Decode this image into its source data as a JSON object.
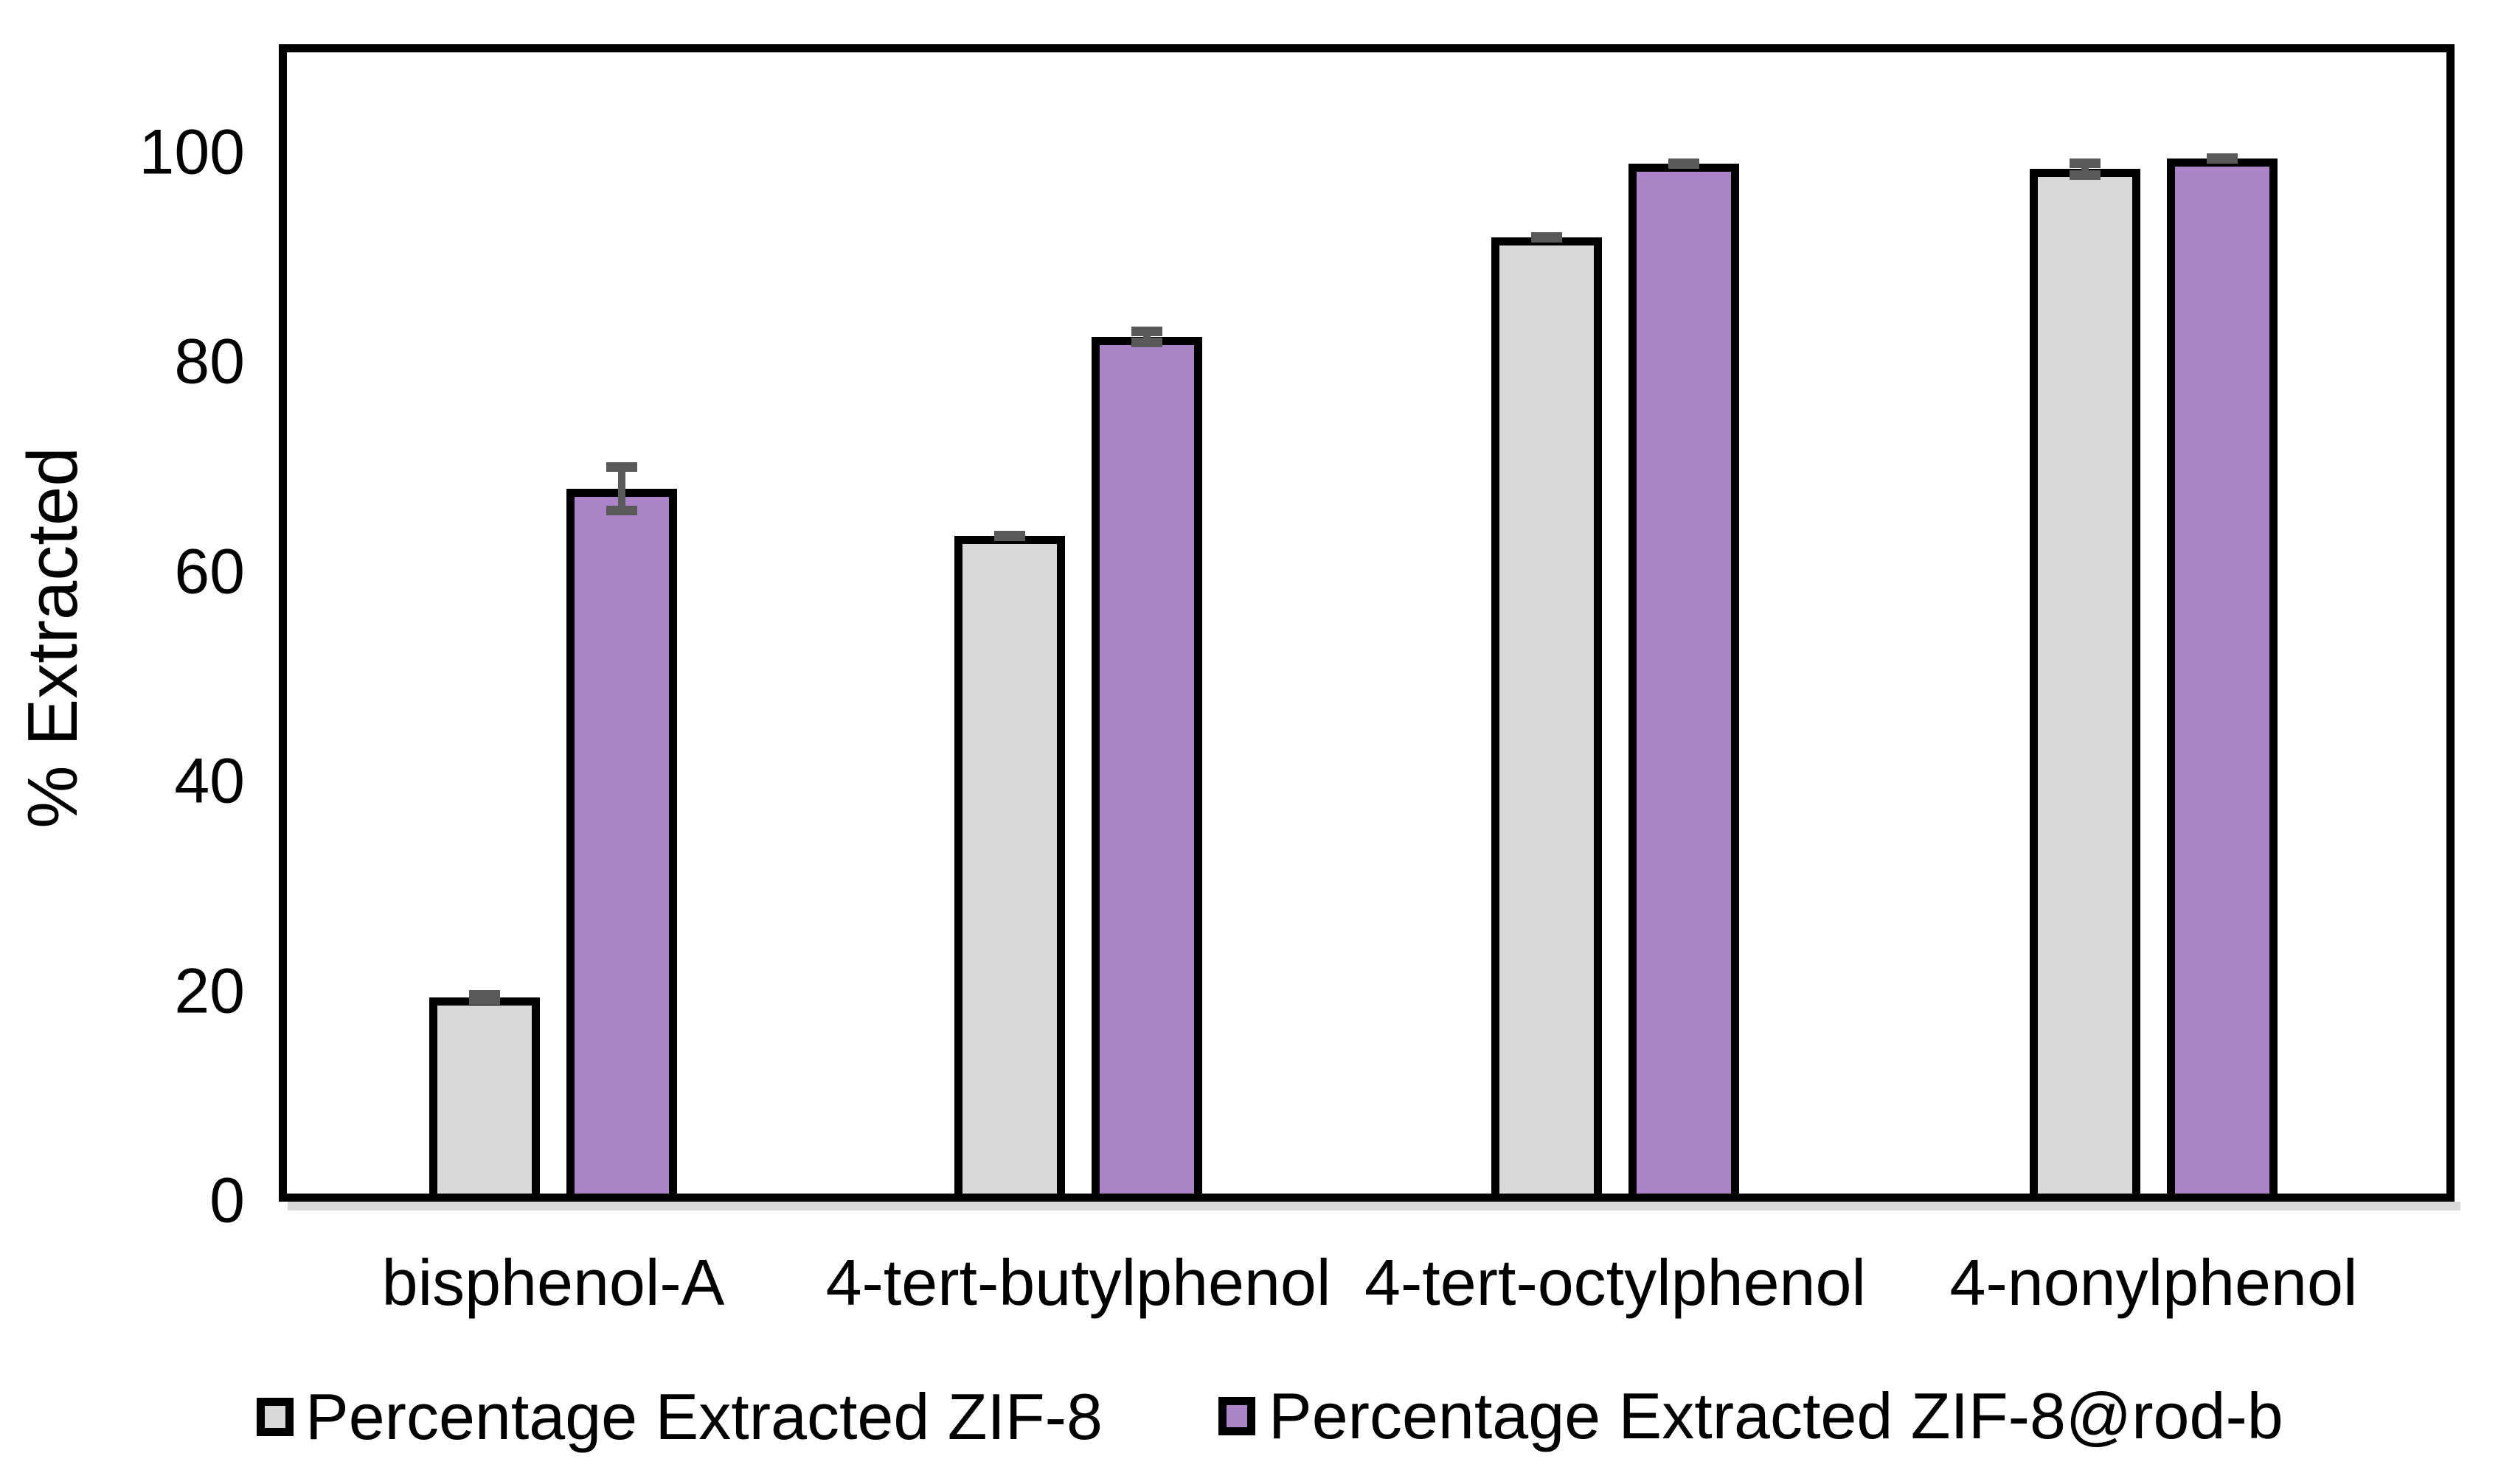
{
  "chart_data": {
    "type": "bar",
    "title": "",
    "xlabel": "",
    "ylabel": "% Extracted",
    "categories": [
      "bisphenol-A",
      "4-tert-butylphenol",
      "4-tert-octylphenol",
      "4-nonylphenol"
    ],
    "series": [
      {
        "name": "Percentage Extracted ZIF-8",
        "color": "#D9D9D9",
        "values": [
          19.5,
          63.5,
          92,
          98.5
        ],
        "errors": [
          0.7,
          0.5,
          0.5,
          1.0
        ]
      },
      {
        "name": "Percentage Extracted ZIF-8@rod-b",
        "color": "#AB84C7",
        "values": [
          68,
          82.5,
          99,
          99.5
        ],
        "errors": [
          2.5,
          1.0,
          0.5,
          0.5
        ]
      }
    ],
    "yticks": [
      0,
      20,
      40,
      60,
      80,
      100
    ],
    "ylim": [
      0,
      110
    ],
    "grid": false,
    "legend_position": "bottom",
    "bar_border_color": "#000000",
    "error_bar_color": "#595959",
    "axis_shadow_color": "#D9D9D9"
  }
}
